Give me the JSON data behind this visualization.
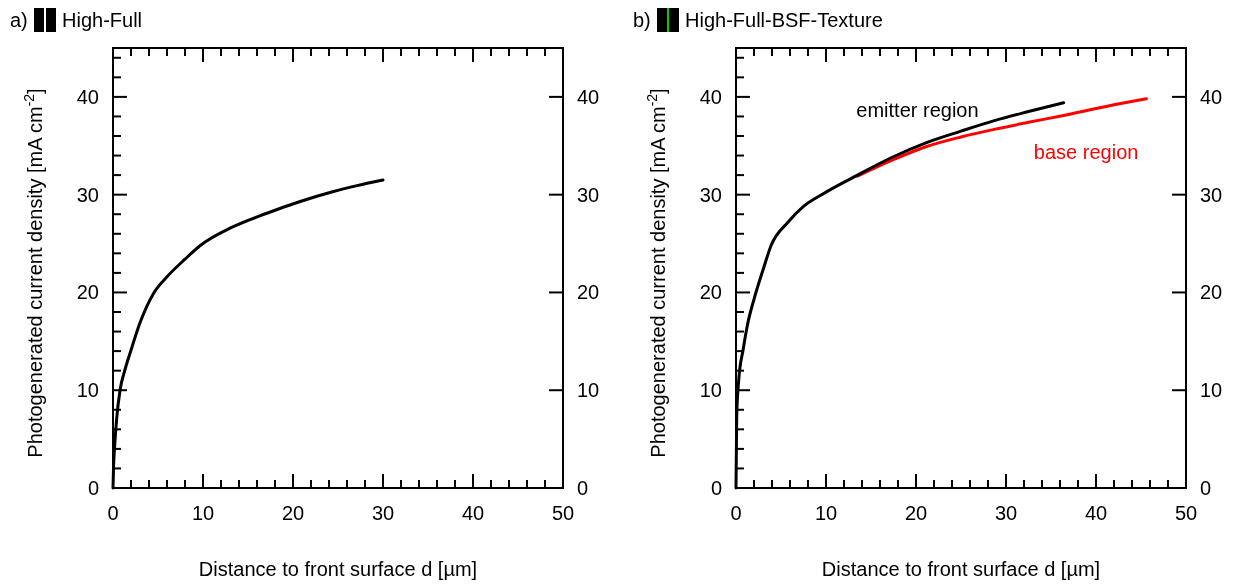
{
  "chart_data": [
    {
      "type": "line",
      "title": "a)",
      "subtitle": "High-Full",
      "xlabel": "Distance to front surface d [µm]",
      "ylabel": "Photogenerated current density [mA cm$^{-2}$]",
      "xlim": [
        0,
        50
      ],
      "xticks": [
        0,
        {
          "value": 2,
          "label": null
        },
        {
          "value": 4,
          "label": null
        },
        {
          "value": 6,
          "label": null
        },
        {
          "value": 8,
          "label": null
        },
        10,
        {
          "value": 12,
          "label": null
        },
        {
          "value": 14,
          "label": null
        },
        {
          "value": 16,
          "label": null
        },
        {
          "value": 18,
          "label": null
        },
        20,
        {
          "value": 22,
          "label": null
        },
        {
          "value": 24,
          "label": null
        },
        {
          "value": 26,
          "label": null
        },
        {
          "value": 28,
          "label": null
        },
        30,
        {
          "value": 32,
          "label": null
        },
        {
          "value": 34,
          "label": null
        },
        {
          "value": 36,
          "label": null
        },
        {
          "value": 38,
          "label": null
        },
        40,
        {
          "value": 42,
          "label": null
        },
        {
          "value": 44,
          "label": null
        },
        {
          "value": 46,
          "label": null
        },
        {
          "value": 48,
          "label": null
        },
        50
      ],
      "ylim": [
        0,
        45
      ],
      "yticks": [
        0,
        {
          "value": 2,
          "label": null
        },
        {
          "value": 4,
          "label": null
        },
        {
          "value": 6,
          "label": null
        },
        {
          "value": 8,
          "label": null
        },
        10,
        {
          "value": 12,
          "label": null
        },
        {
          "value": 14,
          "label": null
        },
        {
          "value": 16,
          "label": null
        },
        {
          "value": 18,
          "label": null
        },
        20,
        {
          "value": 22,
          "label": null
        },
        {
          "value": 24,
          "label": null
        },
        {
          "value": 26,
          "label": null
        },
        {
          "value": 28,
          "label": null
        },
        30,
        {
          "value": 32,
          "label": null
        },
        {
          "value": 34,
          "label": null
        },
        {
          "value": 36,
          "label": null
        },
        {
          "value": 38,
          "label": null
        },
        40,
        {
          "value": 42,
          "label": null
        },
        {
          "value": 44,
          "label": null
        }
      ],
      "y2lim": [
        0,
        45
      ],
      "y2ticks": [
        0,
        10,
        20,
        30,
        40
      ],
      "grid": false,
      "series": [
        {
          "color": "#000000",
          "x": [
            0,
            0.05,
            0.2,
            0.4,
            0.78,
            1.3,
            1.9,
            3,
            4.5,
            6,
            8,
            9.7,
            13.3,
            17.1,
            20.8,
            24.4,
            27,
            30
          ],
          "values": [
            0,
            1.8,
            4.5,
            7,
            10,
            12,
            13.8,
            16.9,
            19.9,
            21.6,
            23.4,
            24.8,
            26.7,
            28.1,
            29.3,
            30.3,
            30.9,
            31.5
          ]
        }
      ]
    },
    {
      "type": "line",
      "title": "b)",
      "subtitle": "High-Full-BSF-Texture",
      "xlabel": "Distance to front surface d [µm]",
      "ylabel": "Photogenerated current density [mA cm$^{-2}$]",
      "xlim": [
        0,
        50
      ],
      "xticks": [
        0,
        {
          "value": 2,
          "label": null
        },
        {
          "value": 4,
          "label": null
        },
        {
          "value": 6,
          "label": null
        },
        {
          "value": 8,
          "label": null
        },
        10,
        {
          "value": 12,
          "label": null
        },
        {
          "value": 14,
          "label": null
        },
        {
          "value": 16,
          "label": null
        },
        {
          "value": 18,
          "label": null
        },
        20,
        {
          "value": 22,
          "label": null
        },
        {
          "value": 24,
          "label": null
        },
        {
          "value": 26,
          "label": null
        },
        {
          "value": 28,
          "label": null
        },
        30,
        {
          "value": 32,
          "label": null
        },
        {
          "value": 34,
          "label": null
        },
        {
          "value": 36,
          "label": null
        },
        {
          "value": 38,
          "label": null
        },
        40,
        {
          "value": 42,
          "label": null
        },
        {
          "value": 44,
          "label": null
        },
        {
          "value": 46,
          "label": null
        },
        {
          "value": 48,
          "label": null
        },
        50
      ],
      "ylim": [
        0,
        45
      ],
      "yticks": [
        0,
        {
          "value": 2,
          "label": null
        },
        {
          "value": 4,
          "label": null
        },
        {
          "value": 6,
          "label": null
        },
        {
          "value": 8,
          "label": null
        },
        10,
        {
          "value": 12,
          "label": null
        },
        {
          "value": 14,
          "label": null
        },
        {
          "value": 16,
          "label": null
        },
        {
          "value": 18,
          "label": null
        },
        20,
        {
          "value": 22,
          "label": null
        },
        {
          "value": 24,
          "label": null
        },
        {
          "value": 26,
          "label": null
        },
        {
          "value": 28,
          "label": null
        },
        30,
        {
          "value": 32,
          "label": null
        },
        {
          "value": 34,
          "label": null
        },
        {
          "value": 36,
          "label": null
        },
        {
          "value": 38,
          "label": null
        },
        40,
        {
          "value": 42,
          "label": null
        },
        {
          "value": 44,
          "label": null
        }
      ],
      "y2lim": [
        0,
        45
      ],
      "y2ticks": [
        0,
        10,
        20,
        30,
        40
      ],
      "grid": false,
      "series": [
        {
          "name": "base region",
          "color": "#ff0000",
          "x": [
            13.5,
            17.3,
            21.1,
            25,
            28.8,
            32.5,
            36.4,
            41,
            45.6
          ],
          "values": [
            31.9,
            33.5,
            34.9,
            35.9,
            36.7,
            37.4,
            38.1,
            39,
            39.8
          ]
        },
        {
          "name": "emitter region",
          "color": "#000000",
          "x": [
            0,
            0.08,
            0.3,
            0.8,
            1.3,
            2,
            3,
            3.9,
            5.8,
            7.5,
            9.7,
            13.5,
            17.3,
            21.1,
            25,
            28.8,
            32.5,
            36.4
          ],
          "values": [
            0,
            7.4,
            11,
            14.2,
            16.8,
            19.3,
            22.3,
            24.8,
            27.2,
            28.8,
            30.1,
            32,
            33.8,
            35.3,
            36.5,
            37.6,
            38.5,
            39.4
          ]
        }
      ]
    }
  ]
}
